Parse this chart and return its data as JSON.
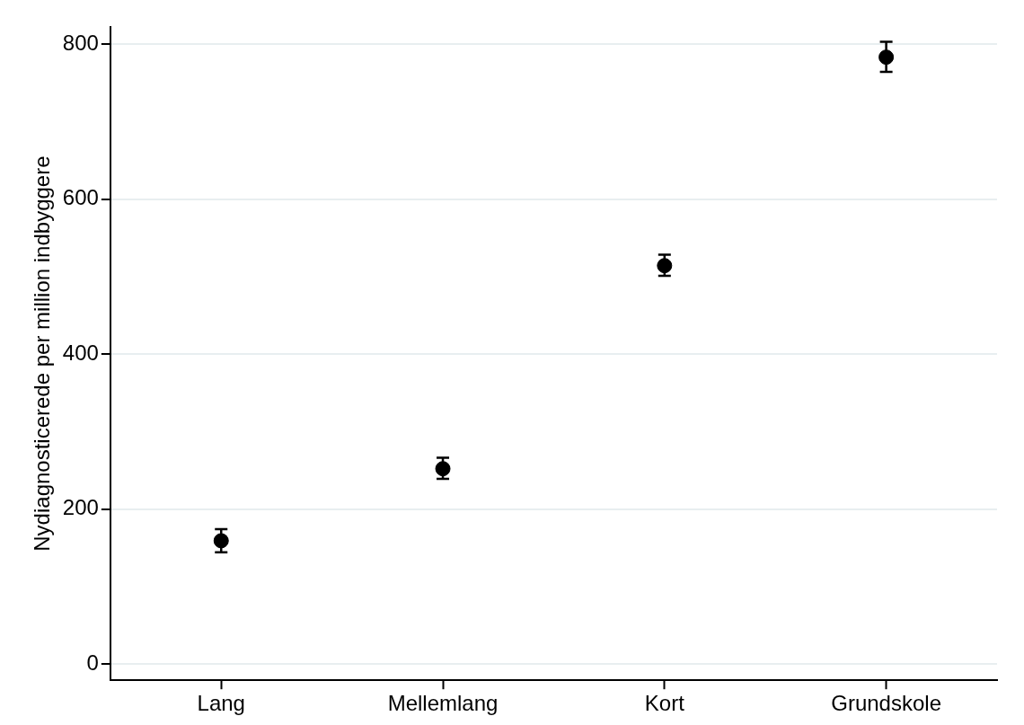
{
  "chart_data": {
    "type": "scatter",
    "ylabel": "Nydiagnosticerede per million indbyggere",
    "categories": [
      "Lang",
      "Mellemlang",
      "Kort",
      "Grundskole"
    ],
    "values": [
      159,
      252,
      514,
      783
    ],
    "errors": [
      [
        144,
        174
      ],
      [
        239,
        266
      ],
      [
        501,
        528
      ],
      [
        764,
        803
      ]
    ],
    "color": "#000000",
    "marker": "circle",
    "ylim": [
      -21,
      822
    ],
    "yticks": [
      0,
      200,
      400,
      600,
      800
    ],
    "grid": "y",
    "legend": false
  }
}
